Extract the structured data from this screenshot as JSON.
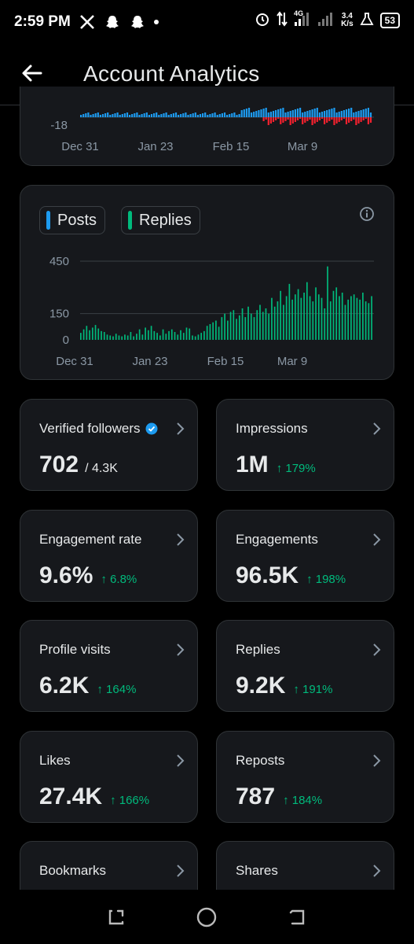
{
  "status_bar": {
    "time": "2:59 PM",
    "network_type": "4G",
    "speed_value": "3.4",
    "speed_unit": "K/s",
    "battery": "53",
    "icons": [
      "x-logo-icon",
      "snapchat-icon",
      "snapchat-icon",
      "notification-dot-icon",
      "alarm-icon",
      "data-transfer-icon",
      "signal-icon",
      "signal-icon",
      "flask-icon",
      "battery-icon"
    ]
  },
  "header": {
    "title": "Account Analytics",
    "back_icon": "arrow-left-icon"
  },
  "top_chart": {
    "y_min_label": "-18",
    "x_ticks": [
      "Dec 31",
      "Jan 23",
      "Feb 15",
      "Mar 9"
    ],
    "colors": {
      "positive": "#1d9bf0",
      "negative": "#f4212e"
    }
  },
  "posts_replies_chart": {
    "legend": [
      {
        "label": "Posts",
        "color": "#1d9bf0"
      },
      {
        "label": "Replies",
        "color": "#00ba7c"
      }
    ],
    "info_icon": "info-circle-icon"
  },
  "chart_data": {
    "type": "bar",
    "series": [
      {
        "name": "Replies",
        "color": "#00ba7c",
        "values": [
          40,
          60,
          80,
          55,
          70,
          85,
          65,
          50,
          45,
          30,
          25,
          20,
          35,
          25,
          20,
          30,
          25,
          45,
          20,
          35,
          60,
          30,
          70,
          55,
          80,
          50,
          40,
          25,
          60,
          35,
          50,
          60,
          45,
          30,
          55,
          40,
          70,
          65,
          25,
          20,
          30,
          40,
          50,
          80,
          90,
          100,
          110,
          75,
          130,
          150,
          110,
          160,
          170,
          120,
          140,
          180,
          130,
          190,
          150,
          130,
          170,
          200,
          160,
          180,
          150,
          240,
          190,
          220,
          280,
          200,
          250,
          320,
          230,
          260,
          290,
          240,
          270,
          330,
          250,
          220,
          300,
          260,
          240,
          180,
          420,
          220,
          280,
          300,
          250,
          270,
          200,
          230,
          250,
          260,
          240,
          230,
          270,
          220,
          210,
          250
        ]
      }
    ],
    "x_ticks": [
      "Dec 31",
      "Jan 23",
      "Feb 15",
      "Mar 9"
    ],
    "y_ticks": [
      0,
      150,
      450
    ],
    "ylim": [
      0,
      450
    ],
    "grid": true
  },
  "metrics": [
    {
      "label": "Verified followers",
      "value": "702",
      "sub": "/ 4.3K",
      "change": "",
      "verified": true
    },
    {
      "label": "Impressions",
      "value": "1M",
      "sub": "",
      "change": "↑ 179%"
    },
    {
      "label": "Engagement rate",
      "value": "9.6%",
      "sub": "",
      "change": "↑ 6.8%"
    },
    {
      "label": "Engagements",
      "value": "96.5K",
      "sub": "",
      "change": "↑ 198%"
    },
    {
      "label": "Profile visits",
      "value": "6.2K",
      "sub": "",
      "change": "↑ 164%"
    },
    {
      "label": "Replies",
      "value": "9.2K",
      "sub": "",
      "change": "↑ 191%"
    },
    {
      "label": "Likes",
      "value": "27.4K",
      "sub": "",
      "change": "↑ 166%"
    },
    {
      "label": "Reposts",
      "value": "787",
      "sub": "",
      "change": "↑ 184%"
    },
    {
      "label": "Bookmarks",
      "value": "",
      "sub": "",
      "change": ""
    },
    {
      "label": "Shares",
      "value": "",
      "sub": "",
      "change": ""
    }
  ],
  "nav_bar": {
    "icons": [
      "recent-apps-icon",
      "home-circle-icon",
      "back-nav-icon"
    ]
  }
}
